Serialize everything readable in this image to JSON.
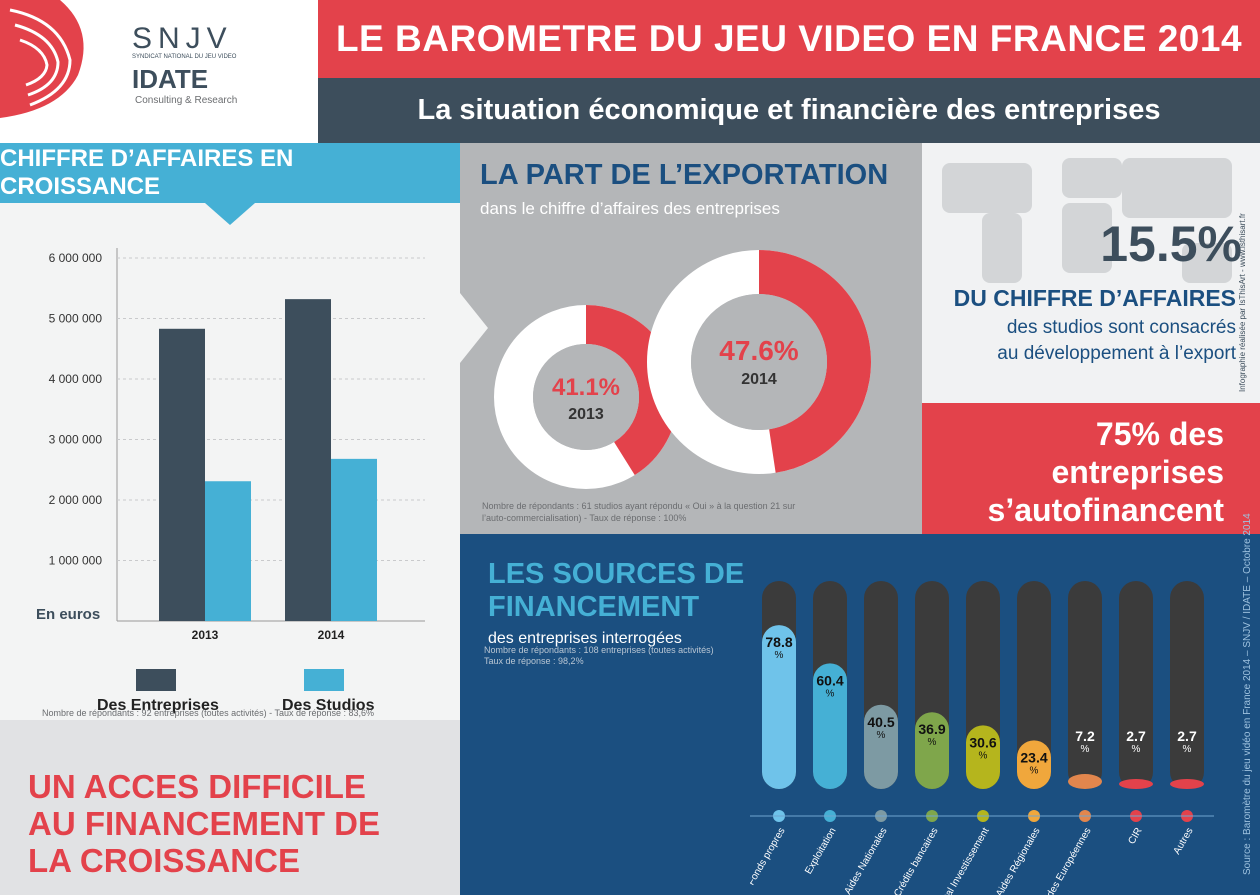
{
  "header": {
    "logo": {
      "brand": "SNJV",
      "tagline": "SYNDICAT NATIONAL DU JEU VIDEO",
      "name": "IDATE",
      "sub": "Consulting & Research"
    },
    "title": "LE BAROMETRE DU JEU VIDEO EN FRANCE 2014",
    "subtitle": "La situation économique et financière des entreprises"
  },
  "revenue": {
    "heading": "CHIFFRE D’AFFAIRES EN CROISSANCE",
    "unit_label": "En euros",
    "note": "Nombre de répondants : 92 entreprises (toutes activités) - Taux de réponse : 83,6%",
    "legend": [
      "Des Entreprises",
      "Des Studios"
    ]
  },
  "export": {
    "heading": "LA PART DE L’EXPORTATION",
    "subheading": "dans le chiffre d’affaires des entreprises",
    "note_line1": "Nombre de répondants : 61 studios ayant répondu « Oui » à la question 21 sur",
    "note_line2": "l’auto-commercialisation) - Taux de réponse : 100%",
    "donuts": [
      {
        "label": "41.1%",
        "year": "2013",
        "value": 41.1
      },
      {
        "label": "47.6%",
        "year": "2014",
        "value": 47.6
      }
    ]
  },
  "export_stat": {
    "value": "15.5%",
    "line1": "DU CHIFFRE D’AFFAIRES",
    "line2": "des studios sont consacrés",
    "line3": "au développement à l’export"
  },
  "autofinance": {
    "line1": "75% des",
    "line2": "entreprises",
    "line3": "s’autofinancent"
  },
  "access": {
    "line1": "UN ACCES DIFFICILE",
    "line2": "AU FINANCEMENT DE",
    "line3": "LA CROISSANCE"
  },
  "sources": {
    "heading_line1": "LES SOURCES DE",
    "heading_line2": "FINANCEMENT",
    "subheading": "des entreprises interrogées",
    "note_line1": "Nombre de répondants : 108 entreprises (toutes activités)",
    "note_line2": "Taux de réponse : 98,2%"
  },
  "side_credit": {
    "credit": "Infographie réalisée par IsThisArt - www.isthisart.fr",
    "source": "Source : Baromètre du jeu vidéo en France 2014 – SNJV / IDATE – Octobre 2014"
  },
  "colors": {
    "red": "#e3424b",
    "dark": "#3d4e5c",
    "blue": "#45b0d5",
    "navy": "#1b4f80",
    "gray": "#b4b6b8"
  },
  "chart_data": [
    {
      "type": "bar",
      "categories": [
        "2013",
        "2014"
      ],
      "series": [
        {
          "name": "Des Entreprises",
          "values": [
            4830000,
            5320000
          ],
          "color": "#3d4e5c"
        },
        {
          "name": "Des Studios",
          "values": [
            2310000,
            2680000
          ],
          "color": "#45b0d5"
        }
      ],
      "ylabel": "En euros",
      "ylim": [
        0,
        6000000
      ],
      "yticks": [
        "6 000 000",
        "5 000 000",
        "4 000 000",
        "3 000 000",
        "2 000 000",
        "1 000 000"
      ],
      "ytick_values": [
        6000000,
        5000000,
        4000000,
        3000000,
        2000000,
        1000000
      ]
    },
    {
      "type": "bar",
      "categories": [
        "Fonds propres",
        "Exploitation",
        "Aides Nationales",
        "Crédits bancaires",
        "Capital Investissement",
        "Aides Régionales",
        "Aides Européennes",
        "CIR",
        "Autres"
      ],
      "values": [
        78.8,
        60.4,
        40.5,
        36.9,
        30.6,
        23.4,
        7.2,
        2.7,
        2.7
      ],
      "value_labels": [
        "78.8",
        "60.4",
        "40.5",
        "36.9",
        "30.6",
        "23.4",
        "7.2",
        "2.7",
        "2.7"
      ],
      "unit": "%",
      "colors": [
        "#6fc3ea",
        "#45b0d5",
        "#7d9aa3",
        "#7fa64b",
        "#b5b51d",
        "#f0a73c",
        "#e2864d",
        "#e3424b",
        "#e3424b"
      ],
      "ylim": [
        0,
        100
      ]
    }
  ]
}
